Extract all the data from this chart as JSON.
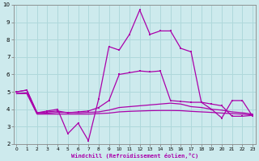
{
  "xlabel": "Windchill (Refroidissement éolien,°C)",
  "background_color": "#cdeaed",
  "grid_color": "#afd8db",
  "line_color": "#aa00aa",
  "x_values": [
    0,
    1,
    2,
    3,
    4,
    5,
    6,
    7,
    8,
    9,
    10,
    11,
    12,
    13,
    14,
    15,
    16,
    17,
    18,
    19,
    20,
    21,
    22,
    23
  ],
  "series1": [
    5.0,
    5.1,
    3.8,
    3.9,
    4.0,
    2.6,
    3.2,
    2.2,
    4.6,
    7.6,
    7.4,
    8.3,
    9.7,
    8.3,
    8.5,
    8.5,
    7.5,
    7.3,
    4.4,
    4.0,
    3.5,
    4.5,
    4.5,
    3.6
  ],
  "series2": [
    5.0,
    5.1,
    3.8,
    3.85,
    3.9,
    3.8,
    3.85,
    3.9,
    4.1,
    4.5,
    6.0,
    6.1,
    6.2,
    6.15,
    6.2,
    4.5,
    4.45,
    4.4,
    4.4,
    4.3,
    4.2,
    3.6,
    3.6,
    3.65
  ],
  "series3": [
    4.9,
    4.95,
    3.75,
    3.78,
    3.82,
    3.82,
    3.8,
    3.82,
    3.85,
    3.95,
    4.1,
    4.15,
    4.2,
    4.25,
    4.3,
    4.35,
    4.3,
    4.15,
    4.1,
    4.0,
    3.95,
    3.85,
    3.8,
    3.72
  ],
  "series4": [
    4.9,
    4.9,
    3.72,
    3.72,
    3.72,
    3.72,
    3.72,
    3.72,
    3.75,
    3.78,
    3.85,
    3.88,
    3.9,
    3.92,
    3.93,
    3.93,
    3.92,
    3.88,
    3.85,
    3.82,
    3.78,
    3.75,
    3.72,
    3.68
  ],
  "ylim": [
    2,
    10
  ],
  "xlim": [
    -0.3,
    23.3
  ],
  "yticks": [
    2,
    3,
    4,
    5,
    6,
    7,
    8,
    9,
    10
  ],
  "xticks": [
    0,
    1,
    2,
    3,
    4,
    5,
    6,
    7,
    8,
    9,
    10,
    11,
    12,
    13,
    14,
    15,
    16,
    17,
    18,
    19,
    20,
    21,
    22,
    23
  ]
}
